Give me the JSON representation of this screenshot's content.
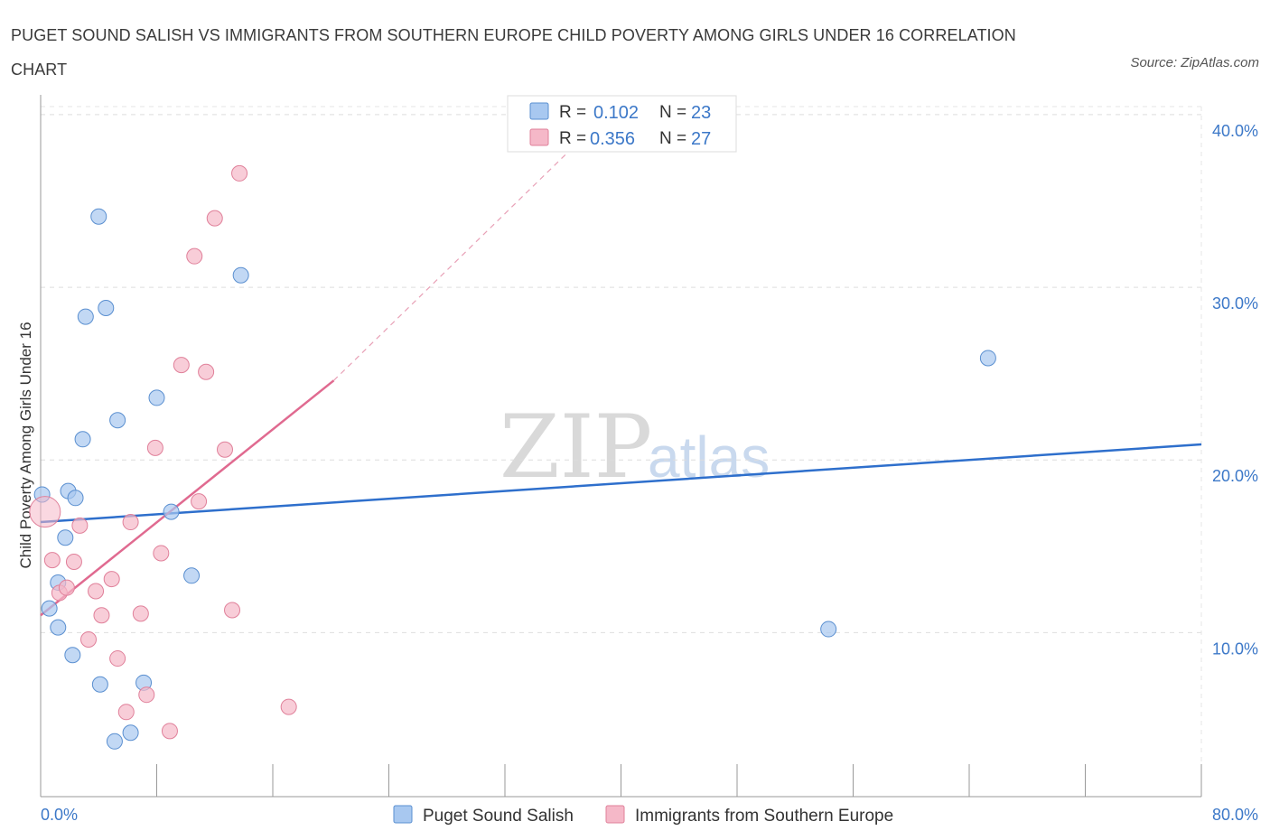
{
  "header": {
    "title": "PUGET SOUND SALISH VS IMMIGRANTS FROM SOUTHERN EUROPE CHILD POVERTY AMONG GIRLS UNDER 16 CORRELATION CHART",
    "source": "Source: ZipAtlas.com"
  },
  "watermark": {
    "zip": "ZIP",
    "atlas": "atlas"
  },
  "legend_top": {
    "rows": [
      {
        "r_label": "R =",
        "r_value": "0.102",
        "n_label": "N =",
        "n_value": "23",
        "color": "#a8c8f0"
      },
      {
        "r_label": "R =",
        "r_value": "0.356",
        "n_label": "N =",
        "n_value": "27",
        "color": "#f5b8c8"
      }
    ]
  },
  "chart_data": {
    "type": "scatter",
    "title": "PUGET SOUND SALISH VS IMMIGRANTS FROM SOUTHERN EUROPE CHILD POVERTY AMONG GIRLS UNDER 16 CORRELATION CHART",
    "xlabel": "",
    "ylabel": "Child Poverty Among Girls Under 16",
    "xlim": [
      0,
      80
    ],
    "ylim": [
      2,
      42
    ],
    "x_tick_labels": [
      "0.0%",
      "80.0%"
    ],
    "y_ticks": [
      10,
      20,
      30,
      40
    ],
    "y_tick_labels": [
      "10.0%",
      "20.0%",
      "30.0%",
      "40.0%"
    ],
    "grid": true,
    "series": [
      {
        "name": "Puget Sound Salish",
        "color": "#a8c8f0",
        "stroke": "#5a8fd0",
        "points": [
          [
            0.1,
            18.0
          ],
          [
            0.6,
            11.4
          ],
          [
            1.2,
            12.9
          ],
          [
            1.2,
            10.3
          ],
          [
            1.7,
            15.5
          ],
          [
            1.9,
            18.2
          ],
          [
            2.2,
            8.7
          ],
          [
            2.4,
            17.8
          ],
          [
            2.9,
            21.2
          ],
          [
            3.1,
            28.3
          ],
          [
            4.0,
            34.1
          ],
          [
            4.1,
            7.0
          ],
          [
            4.5,
            28.8
          ],
          [
            5.1,
            3.7
          ],
          [
            5.3,
            22.3
          ],
          [
            6.2,
            4.2
          ],
          [
            7.1,
            7.1
          ],
          [
            8.0,
            23.6
          ],
          [
            9.0,
            17.0
          ],
          [
            10.4,
            13.3
          ],
          [
            13.8,
            30.7
          ],
          [
            54.3,
            10.2
          ],
          [
            65.3,
            25.9
          ]
        ],
        "trend": {
          "x": [
            0,
            80
          ],
          "y": [
            16.4,
            20.9
          ]
        }
      },
      {
        "name": "Immigrants from Southern Europe",
        "color": "#f5b8c8",
        "stroke": "#e0809a",
        "points": [
          [
            0.3,
            17.0
          ],
          [
            0.8,
            14.2
          ],
          [
            1.3,
            12.3
          ],
          [
            1.8,
            12.6
          ],
          [
            2.3,
            14.1
          ],
          [
            2.7,
            16.2
          ],
          [
            3.3,
            9.6
          ],
          [
            3.8,
            12.4
          ],
          [
            4.2,
            11.0
          ],
          [
            4.9,
            13.1
          ],
          [
            5.3,
            8.5
          ],
          [
            5.9,
            5.4
          ],
          [
            6.2,
            16.4
          ],
          [
            6.9,
            11.1
          ],
          [
            7.3,
            6.4
          ],
          [
            7.9,
            20.7
          ],
          [
            8.3,
            14.6
          ],
          [
            8.9,
            4.3
          ],
          [
            9.7,
            25.5
          ],
          [
            10.6,
            31.8
          ],
          [
            10.9,
            17.6
          ],
          [
            11.4,
            25.1
          ],
          [
            12.0,
            34.0
          ],
          [
            12.7,
            20.6
          ],
          [
            13.2,
            11.3
          ],
          [
            13.7,
            36.6
          ],
          [
            17.1,
            5.7
          ]
        ],
        "trend": {
          "x": [
            0,
            20.2
          ],
          "y": [
            11.0,
            24.6
          ]
        },
        "trend_extension": {
          "x": [
            20.2,
            39.0
          ],
          "y": [
            24.6,
            40.0
          ]
        }
      }
    ]
  },
  "legend_bottom": {
    "items": [
      {
        "label": "Puget Sound Salish",
        "color": "#a8c8f0"
      },
      {
        "label": "Immigrants from Southern Europe",
        "color": "#f5b8c8"
      }
    ]
  }
}
